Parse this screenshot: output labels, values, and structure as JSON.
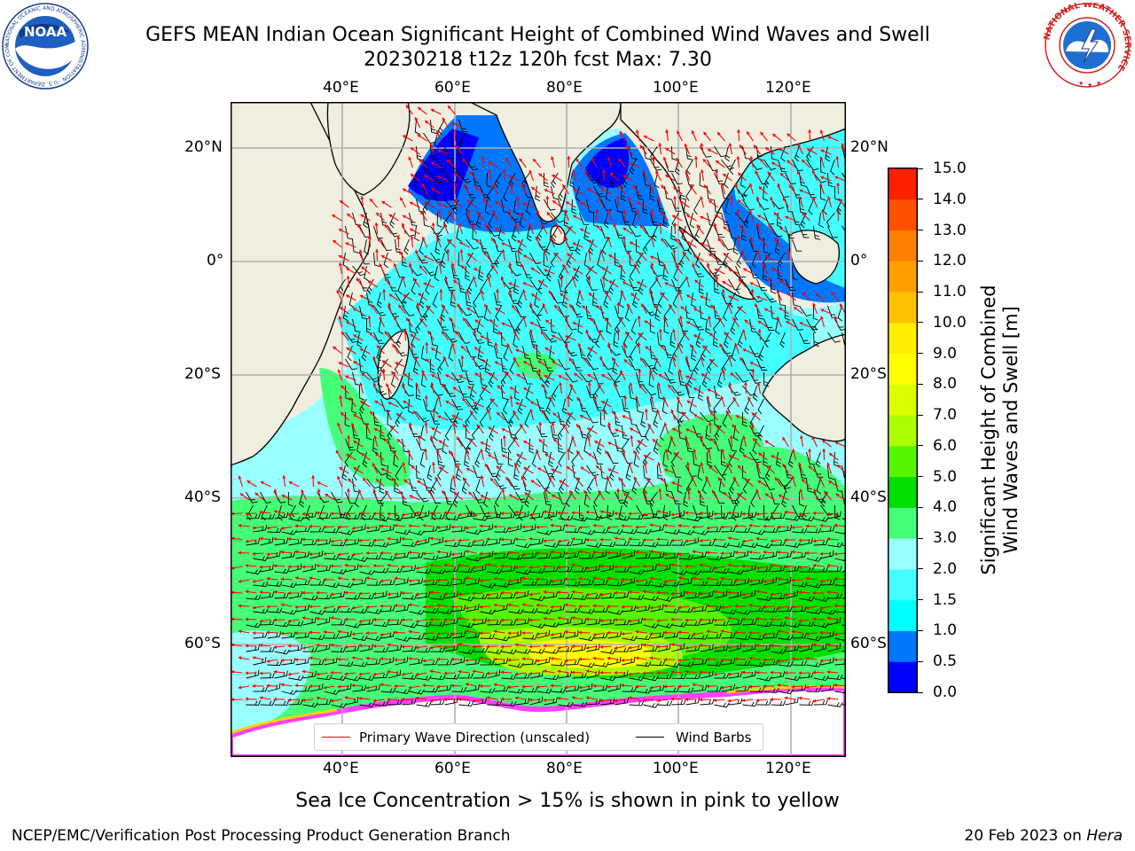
{
  "title": {
    "line1": "GEFS MEAN Indian Ocean Significant Height of Combined Wind Waves and Swell",
    "line2": "20230218 t12z 120h fcst   Max: 7.30"
  },
  "logos": {
    "noaa_text": "NOAA",
    "noaa_ring": "NATIONAL OCEANIC AND ATMOSPHERIC ADMINISTRATION · U.S. DEPARTMENT OF COMMERCE ·",
    "nws_ring": "NATIONAL WEATHER SERVICE"
  },
  "map": {
    "lon_ticks": [
      "40°E",
      "60°E",
      "80°E",
      "100°E",
      "120°E"
    ],
    "lat_ticks": [
      "20°N",
      "0°",
      "20°S",
      "40°S",
      "60°S"
    ],
    "ocean_color_scale": "significant wave height"
  },
  "colorbar": {
    "label_line1": "Significant Height of Combined",
    "label_line2": "Wind Waves and Swell [m]",
    "ticks": [
      "0.0",
      "0.5",
      "1.0",
      "1.5",
      "2.0",
      "3.0",
      "4.0",
      "5.0",
      "6.0",
      "7.0",
      "8.0",
      "9.0",
      "10.0",
      "11.0",
      "12.0",
      "13.0",
      "14.0",
      "15.0"
    ],
    "colors": [
      "#0000ff",
      "#0077ff",
      "#00ffff",
      "#44ffff",
      "#99ffff",
      "#44ff77",
      "#00e000",
      "#55f500",
      "#aaff00",
      "#dcff00",
      "#ffff00",
      "#ffee00",
      "#ffc000",
      "#ffa000",
      "#ff8000",
      "#ff5000",
      "#ff2000"
    ]
  },
  "legend": {
    "wave_label": "Primary Wave Direction (unscaled)",
    "wave_color": "#ff0000",
    "wind_label": "Wind Barbs",
    "wind_color": "#000000"
  },
  "caption": "Sea Ice Concentration > 15% is shown in pink to yellow",
  "footer": {
    "left": "NCEP/EMC/Verification Post Processing Product Generation Branch",
    "date": "20 Feb 2023 on",
    "machine": "Hera"
  }
}
